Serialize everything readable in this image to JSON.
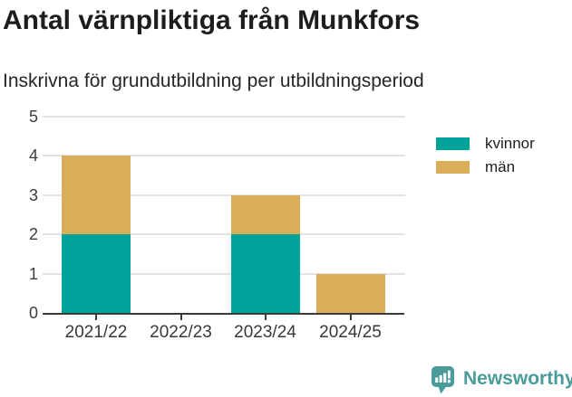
{
  "chart_data": {
    "type": "bar",
    "stacked": true,
    "title": "Antal värnpliktiga från Munkfors",
    "subtitle": "Inskrivna för grundutbildning per utbildningsperiod",
    "categories": [
      "2021/22",
      "2022/23",
      "2023/24",
      "2024/25"
    ],
    "series": [
      {
        "name": "kvinnor",
        "color": "#00a399",
        "values": [
          2,
          0,
          2,
          0
        ]
      },
      {
        "name": "män",
        "color": "#d9ad5a",
        "values": [
          2,
          0,
          1,
          1
        ]
      }
    ],
    "totals": [
      4,
      0,
      3,
      1
    ],
    "xlabel": "",
    "ylabel": "",
    "ylim": [
      0,
      5
    ],
    "yticks": [
      0,
      1,
      2,
      3,
      4,
      5
    ],
    "grid": true,
    "legend_position": "right"
  },
  "footer": {
    "brand": "Newsworthy",
    "logo_icon": "bar-chart-speech-bubble",
    "brand_color": "#4a9c9a"
  }
}
